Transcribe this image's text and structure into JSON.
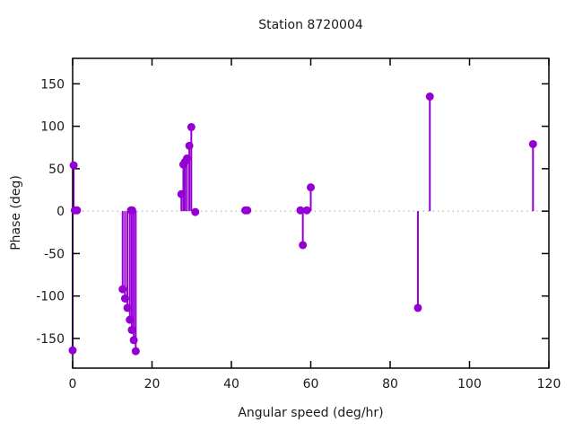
{
  "title": "Station 8720004",
  "chart_data": {
    "type": "stem",
    "title": "Station 8720004",
    "xlabel": "Angular speed (deg/hr)",
    "ylabel": "Phase (deg)",
    "xlim": [
      0,
      120
    ],
    "ylim": [
      -185,
      180
    ],
    "xticks": [
      0,
      20,
      40,
      60,
      80,
      100,
      120
    ],
    "yticks": [
      -150,
      -100,
      -50,
      0,
      50,
      100,
      150
    ],
    "zero_line": true,
    "grid": false,
    "legend": "none",
    "series_color": "#9400d3",
    "zero_line_color": "#a8a8a8",
    "axis_color": "#000000",
    "points": [
      [
        0.25,
        54
      ],
      [
        0.54,
        1
      ],
      [
        1.1,
        1
      ],
      [
        0.0,
        -164
      ],
      [
        12.6,
        -92
      ],
      [
        13.2,
        -103
      ],
      [
        13.8,
        -114
      ],
      [
        14.4,
        -128
      ],
      [
        14.9,
        -140
      ],
      [
        15.4,
        -152
      ],
      [
        15.9,
        -165
      ],
      [
        14.7,
        1
      ],
      [
        15.0,
        1
      ],
      [
        27.4,
        20
      ],
      [
        27.9,
        55
      ],
      [
        28.3,
        58
      ],
      [
        28.8,
        62
      ],
      [
        29.4,
        77
      ],
      [
        29.9,
        99
      ],
      [
        30.9,
        -1
      ],
      [
        43.5,
        1
      ],
      [
        44.0,
        1
      ],
      [
        57.4,
        1
      ],
      [
        58.0,
        -40
      ],
      [
        59.0,
        1
      ],
      [
        60.0,
        28
      ],
      [
        87.0,
        -114
      ],
      [
        90.0,
        135
      ],
      [
        116.0,
        79
      ]
    ]
  }
}
